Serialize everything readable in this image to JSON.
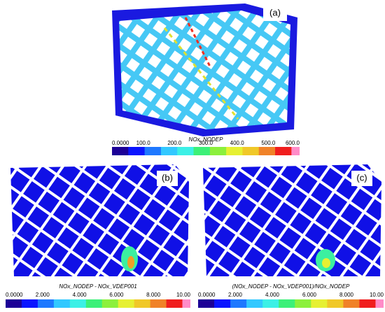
{
  "panels": [
    {
      "label": "(a)",
      "colorbar": {
        "title": "NOx_NODEP",
        "ticks": [
          "0.0000",
          "100.0",
          "200.0",
          "300.0",
          "400.0",
          "500.0",
          "600.0"
        ]
      }
    },
    {
      "label": "(b)",
      "colorbar": {
        "title": "NOx_NODEP - NOx_VDEP001",
        "ticks": [
          "0.0000",
          "2.000",
          "4.000",
          "6.000",
          "8.000",
          "10.00"
        ]
      }
    },
    {
      "label": "(c)",
      "colorbar": {
        "title": "(NOx_NODEP - NOx_VDEP001)/NOx_NODEP",
        "ticks": [
          "0.0000",
          "2.000",
          "4.000",
          "6.000",
          "8.000",
          "10.00"
        ]
      }
    }
  ]
}
